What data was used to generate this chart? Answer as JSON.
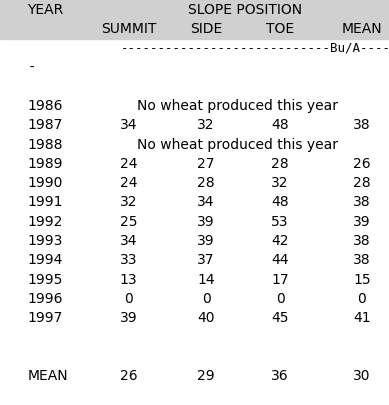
{
  "unit_row": "----------------------------Bu/A----------------------------",
  "unit_row2": "-",
  "rows": [
    {
      "year": "1986",
      "special": "No wheat produced this year"
    },
    {
      "year": "1987",
      "summit": "34",
      "side": "32",
      "toe": "48",
      "mean": "38"
    },
    {
      "year": "1988",
      "special": "No wheat produced this year"
    },
    {
      "year": "1989",
      "summit": "24",
      "side": "27",
      "toe": "28",
      "mean": "26"
    },
    {
      "year": "1990",
      "summit": "24",
      "side": "28",
      "toe": "32",
      "mean": "28"
    },
    {
      "year": "1991",
      "summit": "32",
      "side": "34",
      "toe": "48",
      "mean": "38"
    },
    {
      "year": "1992",
      "summit": "25",
      "side": "39",
      "toe": "53",
      "mean": "39"
    },
    {
      "year": "1993",
      "summit": "34",
      "side": "39",
      "toe": "42",
      "mean": "38"
    },
    {
      "year": "1994",
      "summit": "33",
      "side": "37",
      "toe": "44",
      "mean": "38"
    },
    {
      "year": "1995",
      "summit": "13",
      "side": "14",
      "toe": "17",
      "mean": "15"
    },
    {
      "year": "1996",
      "summit": "0",
      "side": "0",
      "toe": "0",
      "mean": "0"
    },
    {
      "year": "1997",
      "summit": "39",
      "side": "40",
      "toe": "45",
      "mean": "41"
    }
  ],
  "mean_row": {
    "year": "MEAN",
    "summit": "26",
    "side": "29",
    "toe": "36",
    "mean": "30"
  },
  "bg_color_header": "#d0d0d0",
  "bg_color_body": "#ffffff",
  "font_size": 10,
  "fig_width": 3.89,
  "fig_height": 4.05,
  "col_x": {
    "year": 0.07,
    "summit": 0.33,
    "side": 0.53,
    "toe": 0.72,
    "mean": 0.93
  },
  "header_rows": 2,
  "total_rows": 21
}
